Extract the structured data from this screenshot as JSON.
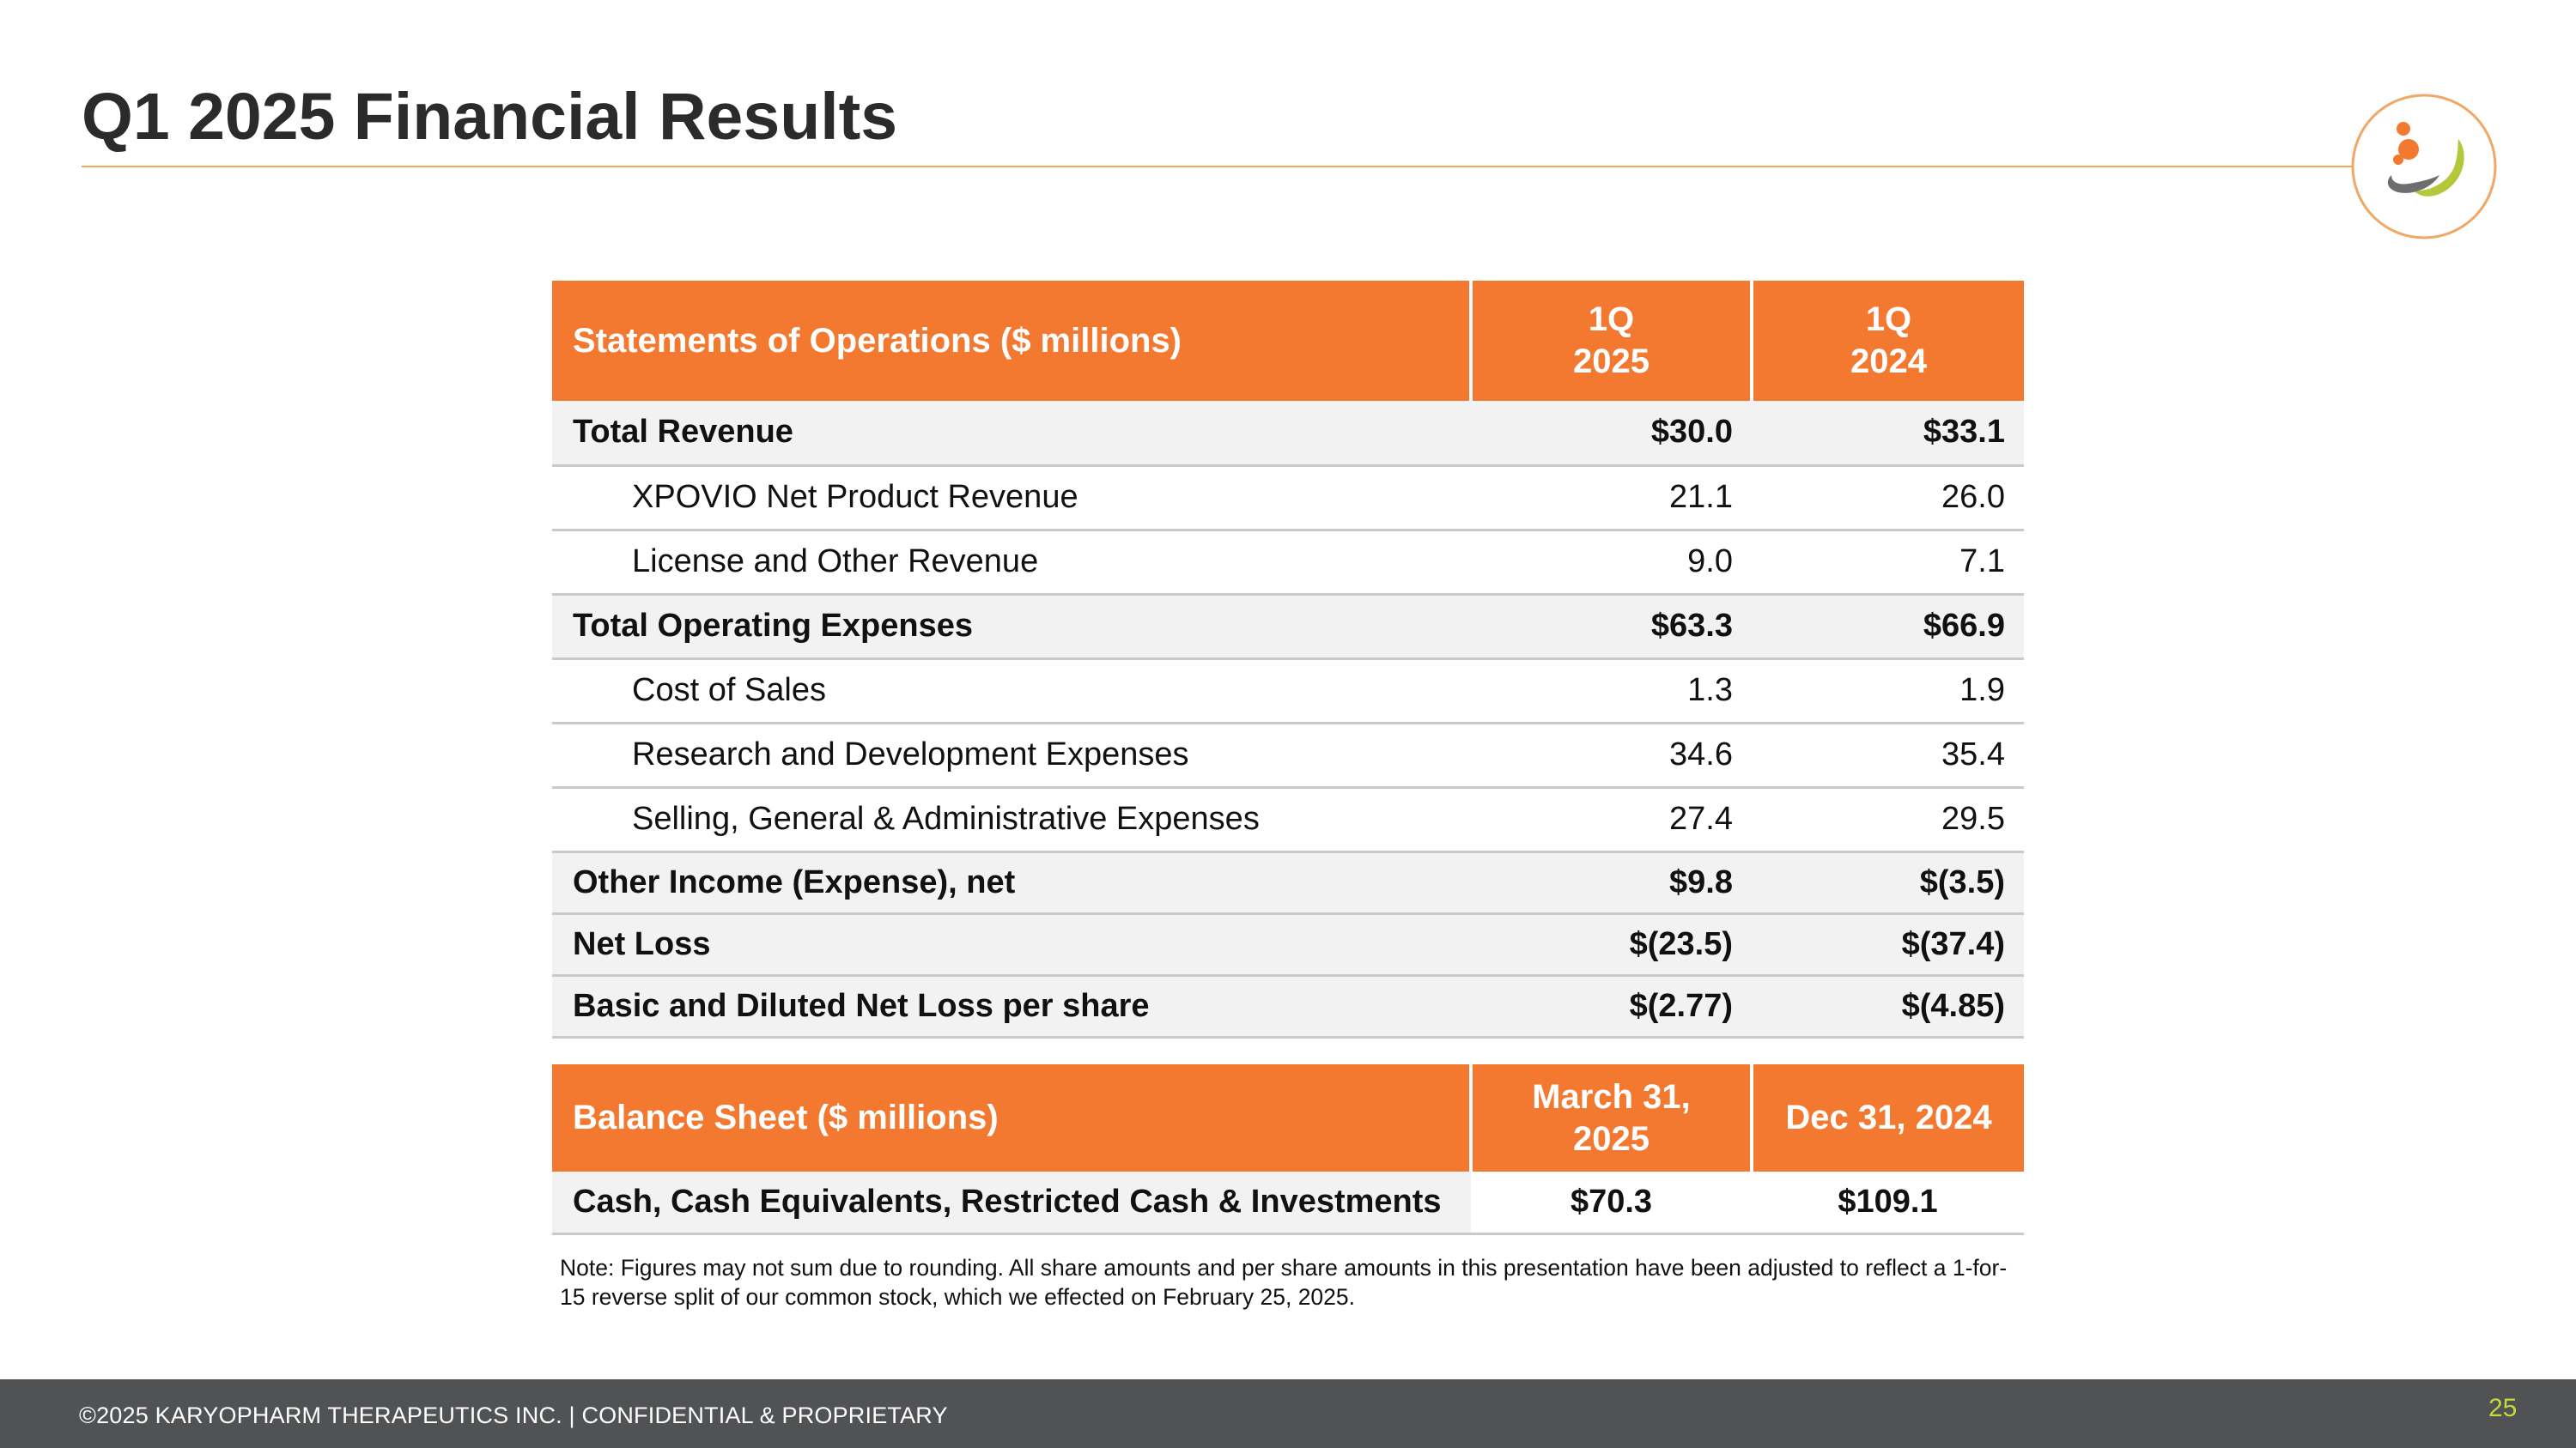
{
  "slide": {
    "title": "Q1 2025 Financial Results",
    "footer": "©2025 KARYOPHARM THERAPEUTICS INC. | CONFIDENTIAL & PROPRIETARY",
    "page_number": "25",
    "note": "Note: Figures may not sum due to rounding. All share amounts and per share amounts in this presentation have been adjusted to reflect a 1-for-15 reverse split of our common stock, which we effected on February 25, 2025.",
    "logo_icon": "karyopharm-logo-icon"
  },
  "colors": {
    "accent_orange": "#f37931",
    "footer_gray": "#505254",
    "page_number_green": "#c7d93a"
  },
  "operations": {
    "header": {
      "label": "Statements of Operations ($ millions)",
      "col1": [
        "1Q",
        "2025"
      ],
      "col2": [
        "1Q",
        "2024"
      ]
    },
    "rows": [
      {
        "label": "Total Revenue",
        "q1_2025": "$30.0",
        "q1_2024": "$33.1"
      },
      {
        "label": "XPOVIO Net Product Revenue",
        "q1_2025": "21.1",
        "q1_2024": "26.0"
      },
      {
        "label": "License and Other Revenue",
        "q1_2025": "9.0",
        "q1_2024": "7.1"
      },
      {
        "label": "Total Operating Expenses",
        "q1_2025": "$63.3",
        "q1_2024": "$66.9"
      },
      {
        "label": "Cost of Sales",
        "q1_2025": "1.3",
        "q1_2024": "1.9"
      },
      {
        "label": "Research and Development Expenses",
        "q1_2025": "34.6",
        "q1_2024": "35.4"
      },
      {
        "label": "Selling, General & Administrative Expenses",
        "q1_2025": "27.4",
        "q1_2024": "29.5"
      },
      {
        "label": "Other Income (Expense), net",
        "q1_2025": "$9.8",
        "q1_2024": "$(3.5)"
      },
      {
        "label": "Net Loss",
        "q1_2025": "$(23.5)",
        "q1_2024": "$(37.4)"
      },
      {
        "label": "Basic and Diluted Net Loss per share",
        "q1_2025": "$(2.77)",
        "q1_2024": "$(4.85)"
      }
    ]
  },
  "balance_sheet": {
    "header": {
      "label": "Balance Sheet ($ millions)",
      "col1": [
        "March 31,",
        "2025"
      ],
      "col2": "Dec 31, 2024"
    },
    "rows": [
      {
        "label": "Cash, Cash Equivalents, Restricted Cash & Investments",
        "mar_2025": "$70.3",
        "dec_2024": "$109.1"
      }
    ]
  }
}
